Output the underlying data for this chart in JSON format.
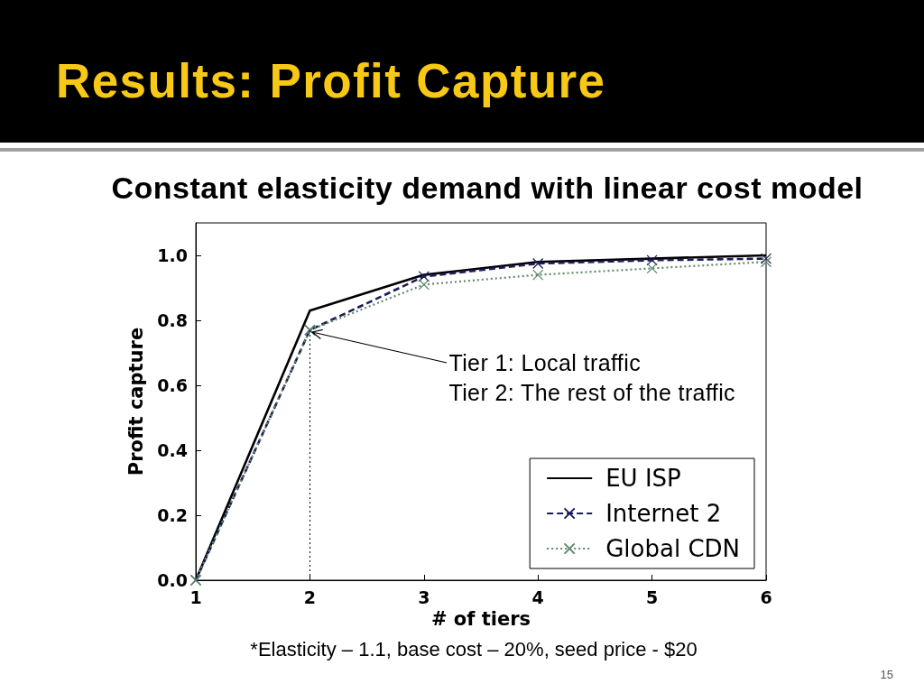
{
  "chart_data": {
    "type": "line",
    "title": "Results: Profit Capture",
    "subtitle": "Constant elasticity demand with linear cost model",
    "xlabel": "# of tiers",
    "ylabel": "Profit capture",
    "x": [
      1,
      2,
      3,
      4,
      5,
      6
    ],
    "series": [
      {
        "name": "EU ISP",
        "color": "#000000",
        "line_style": "solid",
        "marker": "none",
        "values": [
          0,
          0.83,
          0.94,
          0.98,
          0.99,
          1.0
        ]
      },
      {
        "name": "Internet 2",
        "color": "#1c1c58",
        "line_style": "dashed",
        "marker": "cross",
        "values": [
          0,
          0.77,
          0.935,
          0.975,
          0.985,
          0.99
        ]
      },
      {
        "name": "Global CDN",
        "color": "#5e8a6a",
        "line_style": "dotted",
        "marker": "cross",
        "values": [
          0,
          0.77,
          0.91,
          0.94,
          0.96,
          0.98
        ]
      }
    ],
    "xlim": [
      1,
      6
    ],
    "xticks": [
      1,
      2,
      3,
      4,
      5,
      6
    ],
    "ylim": [
      0,
      1.1
    ],
    "yticks": [
      {
        "value": 0,
        "label": "0.0"
      },
      {
        "value": 0.2,
        "label": "0.2"
      },
      {
        "value": 0.4,
        "label": "0.4"
      },
      {
        "value": 0.6,
        "label": "0.6"
      },
      {
        "value": 0.8,
        "label": "0.8"
      },
      {
        "value": 1.0,
        "label": "1.0"
      }
    ],
    "grid": false,
    "legend": "bottom right",
    "ref_lines": [
      {
        "axis": "x",
        "value": 2,
        "color": "#000000",
        "line_style": "dotted"
      }
    ],
    "annotations": [
      {
        "text": "Tier 1: Local traffic\nTier 2: The rest of the traffic",
        "x": 2,
        "y": 0.77
      },
      "*Elasticity – 1.1, base cost – 20%, seed price - $20",
      "15"
    ]
  }
}
